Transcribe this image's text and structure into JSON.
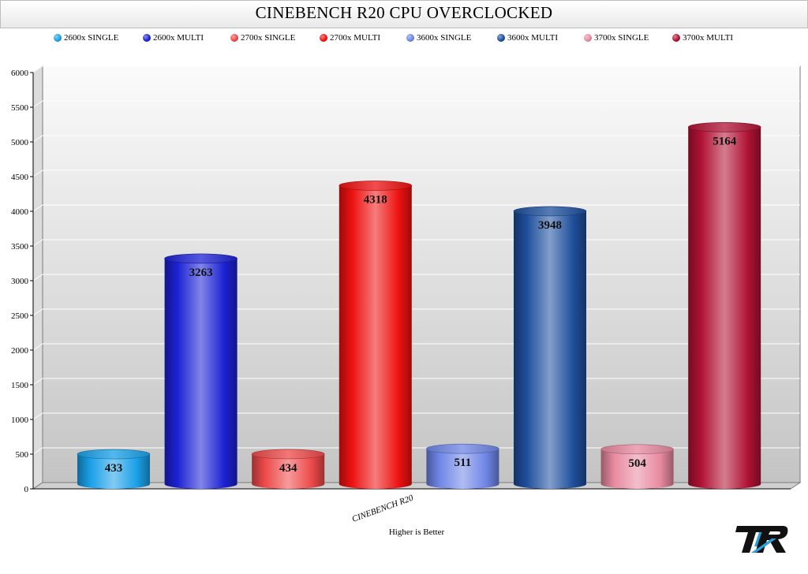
{
  "chart_data": {
    "type": "bar",
    "title": "CINEBENCH R20 CPU OVERCLOCKED",
    "xlabel": "Higher is Better",
    "ylabel": "",
    "categories": [
      "CINEBENCH R20"
    ],
    "ylim": [
      0,
      6000
    ],
    "yticks": [
      0,
      500,
      1000,
      1500,
      2000,
      2500,
      3000,
      3500,
      4000,
      4500,
      5000,
      5500,
      6000
    ],
    "grid": true,
    "legend_position": "top",
    "series": [
      {
        "name": "2600x SINGLE",
        "values": [
          433
        ],
        "color": "#1aa0e8"
      },
      {
        "name": "2600x MULTI",
        "values": [
          3263
        ],
        "color": "#1c22d4"
      },
      {
        "name": "2700x SINGLE",
        "values": [
          434
        ],
        "color": "#ee4a4a"
      },
      {
        "name": "2700x MULTI",
        "values": [
          4318
        ],
        "color": "#ee1111"
      },
      {
        "name": "3600x SINGLE",
        "values": [
          511
        ],
        "color": "#6f86e6"
      },
      {
        "name": "3600x MULTI",
        "values": [
          3948
        ],
        "color": "#1e4f9c"
      },
      {
        "name": "3700x SINGLE",
        "values": [
          504
        ],
        "color": "#e88aa0"
      },
      {
        "name": "3700x MULTI",
        "values": [
          5164
        ],
        "color": "#b01234"
      }
    ]
  }
}
